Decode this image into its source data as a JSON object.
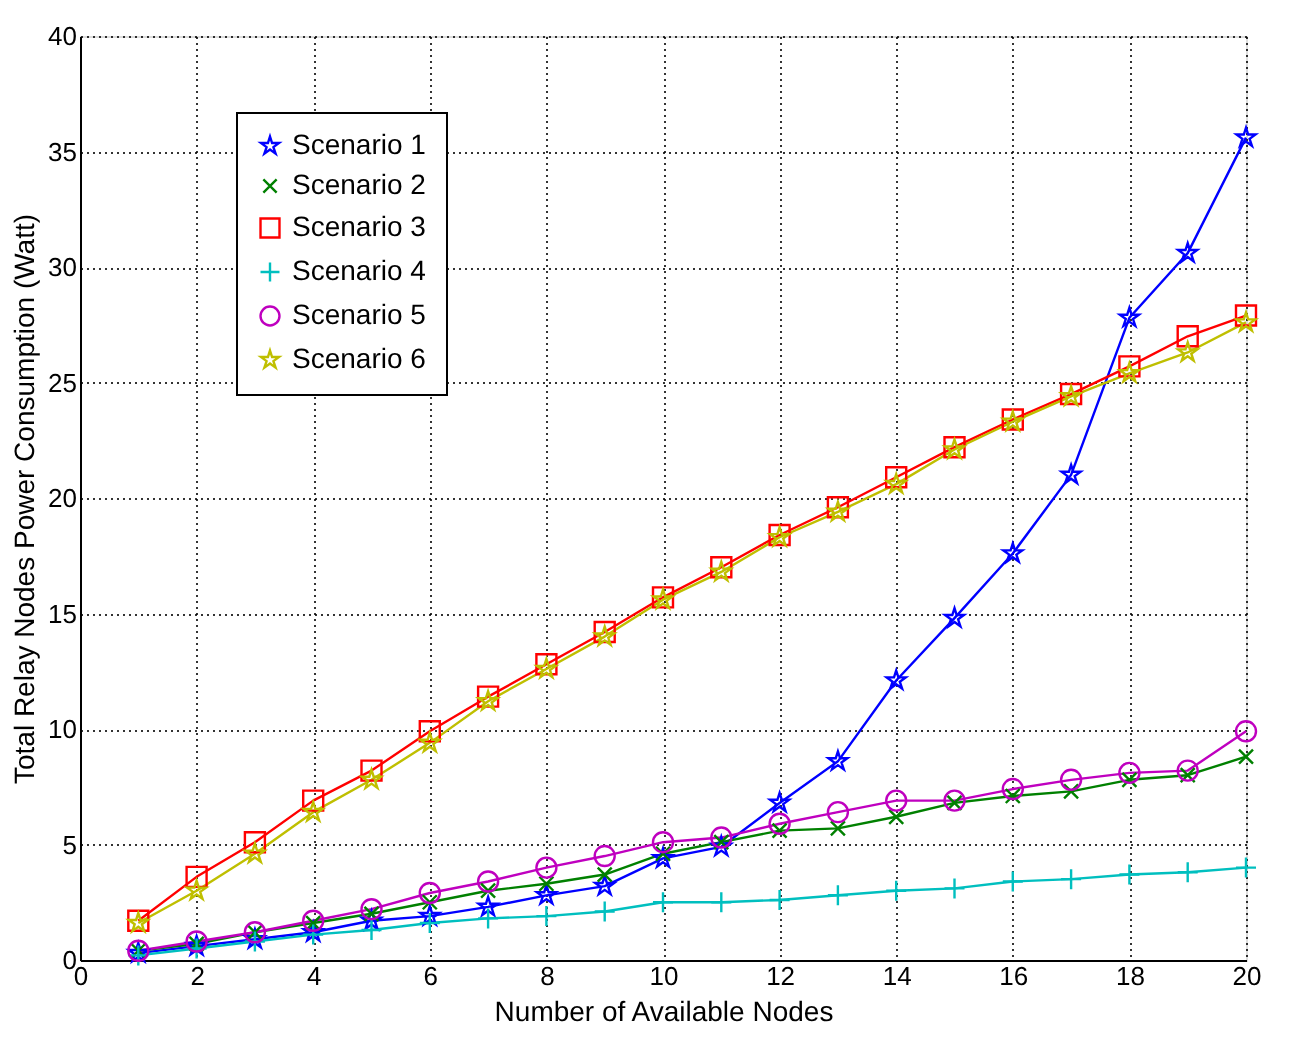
{
  "chart_data": {
    "type": "line",
    "xlabel": "Number of Available Nodes",
    "ylabel": "Total Relay Nodes Power Consumption (Watt)",
    "x": [
      1,
      2,
      3,
      4,
      5,
      6,
      7,
      8,
      9,
      10,
      11,
      12,
      13,
      14,
      15,
      16,
      17,
      18,
      19,
      20
    ],
    "series": [
      {
        "name": "Scenario 1",
        "color": "#0000ff",
        "marker": "star",
        "values": [
          0.3,
          0.6,
          0.9,
          1.2,
          1.7,
          1.9,
          2.3,
          2.8,
          3.2,
          4.4,
          4.9,
          6.8,
          8.6,
          12.1,
          14.8,
          17.6,
          21.0,
          27.8,
          30.6,
          35.6
        ]
      },
      {
        "name": "Scenario 2",
        "color": "#008000",
        "marker": "x",
        "values": [
          0.4,
          0.7,
          1.2,
          1.6,
          2.0,
          2.5,
          3.0,
          3.3,
          3.7,
          4.6,
          5.1,
          5.6,
          5.7,
          6.2,
          6.8,
          7.1,
          7.3,
          7.8,
          8.0,
          8.8
        ]
      },
      {
        "name": "Scenario 3",
        "color": "#ff0000",
        "marker": "square",
        "values": [
          1.7,
          3.6,
          5.1,
          6.9,
          8.2,
          9.9,
          11.4,
          12.8,
          14.2,
          15.7,
          17.0,
          18.4,
          19.6,
          20.9,
          22.2,
          23.4,
          24.5,
          25.7,
          27.0,
          27.9
        ]
      },
      {
        "name": "Scenario 4",
        "color": "#00bfbf",
        "marker": "cross",
        "values": [
          0.2,
          0.5,
          0.8,
          1.1,
          1.3,
          1.6,
          1.8,
          1.9,
          2.1,
          2.5,
          2.5,
          2.6,
          2.8,
          3.0,
          3.1,
          3.4,
          3.5,
          3.7,
          3.8,
          4.0
        ]
      },
      {
        "name": "Scenario 5",
        "color": "#bf00bf",
        "marker": "circle",
        "values": [
          0.4,
          0.8,
          1.2,
          1.7,
          2.2,
          2.9,
          3.4,
          4.0,
          4.5,
          5.1,
          5.3,
          5.9,
          6.4,
          6.9,
          6.9,
          7.4,
          7.8,
          8.1,
          8.2,
          9.9
        ]
      },
      {
        "name": "Scenario 6",
        "color": "#bfbf00",
        "marker": "star",
        "values": [
          1.6,
          3.0,
          4.6,
          6.4,
          7.8,
          9.4,
          11.2,
          12.6,
          14.0,
          15.6,
          16.8,
          18.3,
          19.4,
          20.6,
          22.1,
          23.3,
          24.4,
          25.4,
          26.3,
          27.6
        ]
      }
    ],
    "xlim": [
      0,
      20
    ],
    "xticks": [
      0,
      2,
      4,
      6,
      8,
      10,
      12,
      14,
      16,
      18,
      20
    ],
    "ylim": [
      0,
      40
    ],
    "yticks": [
      0,
      5,
      10,
      15,
      20,
      25,
      30,
      35,
      40
    ],
    "grid": true,
    "legend": "top left",
    "line_style": "solid"
  }
}
